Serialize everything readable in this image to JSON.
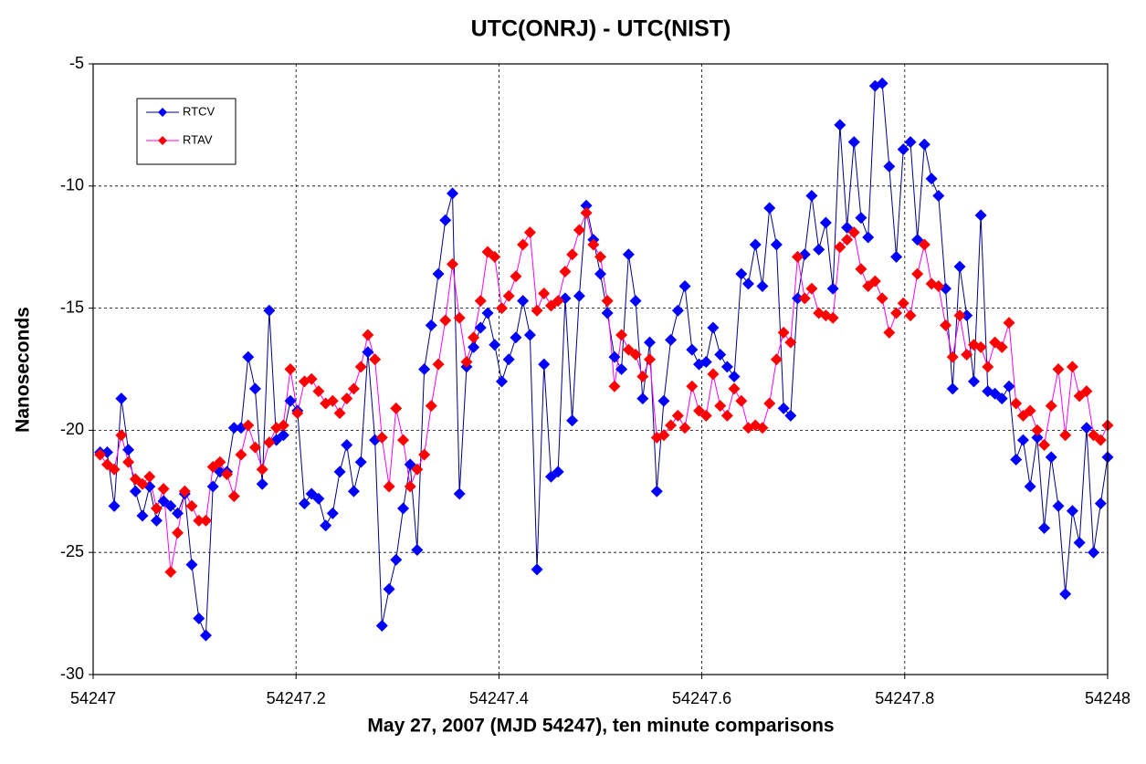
{
  "chart_data": {
    "type": "line",
    "title": "UTC(ONRJ) - UTC(NIST)",
    "x_label": "May 27, 2007 (MJD 54247), ten minute comparisons",
    "y_label": "Nanoseconds",
    "xlim": [
      54247,
      54248
    ],
    "xticks": [
      54247,
      54247.2,
      54247.4,
      54247.6,
      54247.8,
      54248
    ],
    "ylim": [
      -30,
      -5
    ],
    "yticks": [
      -30,
      -25,
      -20,
      -15,
      -10,
      -5
    ],
    "grid": true,
    "legend": "upper left",
    "marker": "diamond",
    "x": [
      54247.0069,
      54247.0139,
      54247.0208,
      54247.0278,
      54247.0347,
      54247.0417,
      54247.0486,
      54247.0556,
      54247.0625,
      54247.0694,
      54247.0764,
      54247.0833,
      54247.0903,
      54247.0972,
      54247.1042,
      54247.1111,
      54247.1181,
      54247.125,
      54247.1319,
      54247.1389,
      54247.1458,
      54247.1528,
      54247.1597,
      54247.1667,
      54247.1736,
      54247.1806,
      54247.1875,
      54247.1944,
      54247.2014,
      54247.2083,
      54247.2153,
      54247.2222,
      54247.2292,
      54247.2361,
      54247.2431,
      54247.25,
      54247.2569,
      54247.2639,
      54247.2708,
      54247.2778,
      54247.2847,
      54247.2917,
      54247.2986,
      54247.3056,
      54247.3125,
      54247.3194,
      54247.3264,
      54247.3333,
      54247.3403,
      54247.3472,
      54247.3542,
      54247.3611,
      54247.3681,
      54247.375,
      54247.3819,
      54247.3889,
      54247.3958,
      54247.4028,
      54247.4097,
      54247.4167,
      54247.4236,
      54247.4306,
      54247.4375,
      54247.4444,
      54247.4514,
      54247.4583,
      54247.4653,
      54247.4722,
      54247.4792,
      54247.4861,
      54247.4931,
      54247.5,
      54247.5069,
      54247.5139,
      54247.5208,
      54247.5278,
      54247.5347,
      54247.5417,
      54247.5486,
      54247.5556,
      54247.5625,
      54247.5694,
      54247.5764,
      54247.5833,
      54247.5903,
      54247.5972,
      54247.6042,
      54247.6111,
      54247.6181,
      54247.625,
      54247.6319,
      54247.6389,
      54247.6458,
      54247.6528,
      54247.6597,
      54247.6667,
      54247.6736,
      54247.6806,
      54247.6875,
      54247.6944,
      54247.7014,
      54247.7083,
      54247.7153,
      54247.7222,
      54247.7292,
      54247.7361,
      54247.7431,
      54247.75,
      54247.7569,
      54247.7639,
      54247.7708,
      54247.7778,
      54247.7847,
      54247.7917,
      54247.7986,
      54247.8056,
      54247.8125,
      54247.8194,
      54247.8264,
      54247.8333,
      54247.8403,
      54247.8472,
      54247.8542,
      54247.8611,
      54247.8681,
      54247.875,
      54247.8819,
      54247.8889,
      54247.8958,
      54247.9028,
      54247.9097,
      54247.9167,
      54247.9236,
      54247.9306,
      54247.9375,
      54247.9444,
      54247.9514,
      54247.9583,
      54247.9653,
      54247.9722,
      54247.9792,
      54247.9861,
      54247.9931,
      54248
    ],
    "series": [
      {
        "name": "RTCV",
        "color": "#0000ff",
        "line_color": "#000080",
        "values": [
          -20.9,
          -20.9,
          -23.1,
          -18.7,
          -20.8,
          -22.5,
          -23.5,
          -22.3,
          -23.7,
          -22.9,
          -23.1,
          -23.4,
          -22.6,
          -25.5,
          -27.7,
          -28.4,
          -22.3,
          -21.7,
          -21.7,
          -19.9,
          -19.9,
          -17.0,
          -18.3,
          -22.2,
          -15.1,
          -20.4,
          -20.2,
          -18.8,
          -19.2,
          -23.0,
          -22.6,
          -22.8,
          -23.9,
          -23.4,
          -21.7,
          -20.6,
          -22.5,
          -21.3,
          -16.8,
          -20.4,
          -28.0,
          -26.5,
          -25.3,
          -23.2,
          -21.4,
          -24.9,
          -17.5,
          -15.7,
          -13.6,
          -11.4,
          -10.3,
          -22.6,
          -17.4,
          -16.6,
          -15.8,
          -15.2,
          -16.5,
          -18.0,
          -17.1,
          -16.2,
          -14.7,
          -16.1,
          -25.7,
          -17.3,
          -21.9,
          -21.7,
          -14.6,
          -19.6,
          -14.5,
          -10.8,
          -12.2,
          -13.6,
          -15.2,
          -17.0,
          -17.5,
          -12.8,
          -14.7,
          -18.7,
          -16.4,
          -22.5,
          -18.8,
          -16.3,
          -15.1,
          -14.1,
          -16.7,
          -17.3,
          -17.2,
          -15.8,
          -16.9,
          -17.4,
          -17.8,
          -13.6,
          -14.0,
          -12.4,
          -14.1,
          -10.9,
          -12.4,
          -19.1,
          -19.4,
          -14.6,
          -12.8,
          -10.4,
          -12.6,
          -11.5,
          -14.2,
          -7.5,
          -11.7,
          -8.2,
          -11.3,
          -12.1,
          -5.9,
          -5.8,
          -9.2,
          -12.9,
          -8.5,
          -8.2,
          -12.2,
          -8.3,
          -9.7,
          -10.4,
          -14.2,
          -18.3,
          -13.3,
          -15.3,
          -18.0,
          -11.2,
          -18.4,
          -18.5,
          -18.7,
          -18.2,
          -21.2,
          -20.4,
          -22.3,
          -20.3,
          -24.0,
          -21.1,
          -23.1,
          -26.7,
          -23.3,
          -24.6,
          -19.9,
          -25.0,
          -23.0,
          -21.1
        ]
      },
      {
        "name": "RTAV",
        "color": "#ff0000",
        "line_color": "#ff00ff",
        "values": [
          -21.0,
          -21.4,
          -21.6,
          -20.2,
          -21.3,
          -22.0,
          -22.2,
          -21.9,
          -23.2,
          -22.4,
          -25.8,
          -24.2,
          -22.5,
          -23.1,
          -23.7,
          -23.7,
          -21.5,
          -21.3,
          -21.8,
          -22.7,
          -21.0,
          -19.8,
          -20.7,
          -21.6,
          -20.5,
          -19.9,
          -19.8,
          -17.5,
          -19.3,
          -18.0,
          -17.9,
          -18.4,
          -18.9,
          -18.8,
          -19.3,
          -18.7,
          -18.3,
          -17.4,
          -16.1,
          -17.1,
          -20.3,
          -22.3,
          -19.1,
          -20.4,
          -22.3,
          -21.6,
          -21.0,
          -19.0,
          -17.3,
          -15.5,
          -13.2,
          -15.4,
          -17.2,
          -16.2,
          -14.7,
          -12.7,
          -12.9,
          -15.0,
          -14.5,
          -13.7,
          -12.4,
          -11.9,
          -15.1,
          -14.4,
          -14.9,
          -14.7,
          -13.5,
          -12.8,
          -11.8,
          -11.1,
          -12.4,
          -12.9,
          -14.7,
          -18.2,
          -16.1,
          -16.7,
          -16.9,
          -17.8,
          -17.1,
          -20.3,
          -20.2,
          -19.8,
          -19.4,
          -19.9,
          -18.2,
          -19.2,
          -19.4,
          -17.7,
          -19.0,
          -19.4,
          -18.3,
          -18.8,
          -19.9,
          -19.8,
          -19.9,
          -18.9,
          -17.1,
          -16.0,
          -16.4,
          -12.9,
          -14.6,
          -14.2,
          -15.2,
          -15.3,
          -15.4,
          -12.5,
          -12.2,
          -11.9,
          -13.4,
          -14.1,
          -13.9,
          -14.6,
          -16.0,
          -15.2,
          -14.8,
          -15.3,
          -13.6,
          -12.4,
          -14.0,
          -14.1,
          -15.7,
          -17.0,
          -15.3,
          -16.9,
          -16.5,
          -16.6,
          -17.4,
          -16.4,
          -16.6,
          -15.6,
          -18.9,
          -19.4,
          -19.2,
          -20.0,
          -20.6,
          -19.0,
          -17.5,
          -20.2,
          -17.4,
          -18.6,
          -18.4,
          -20.2,
          -20.4,
          -19.8
        ]
      }
    ]
  }
}
